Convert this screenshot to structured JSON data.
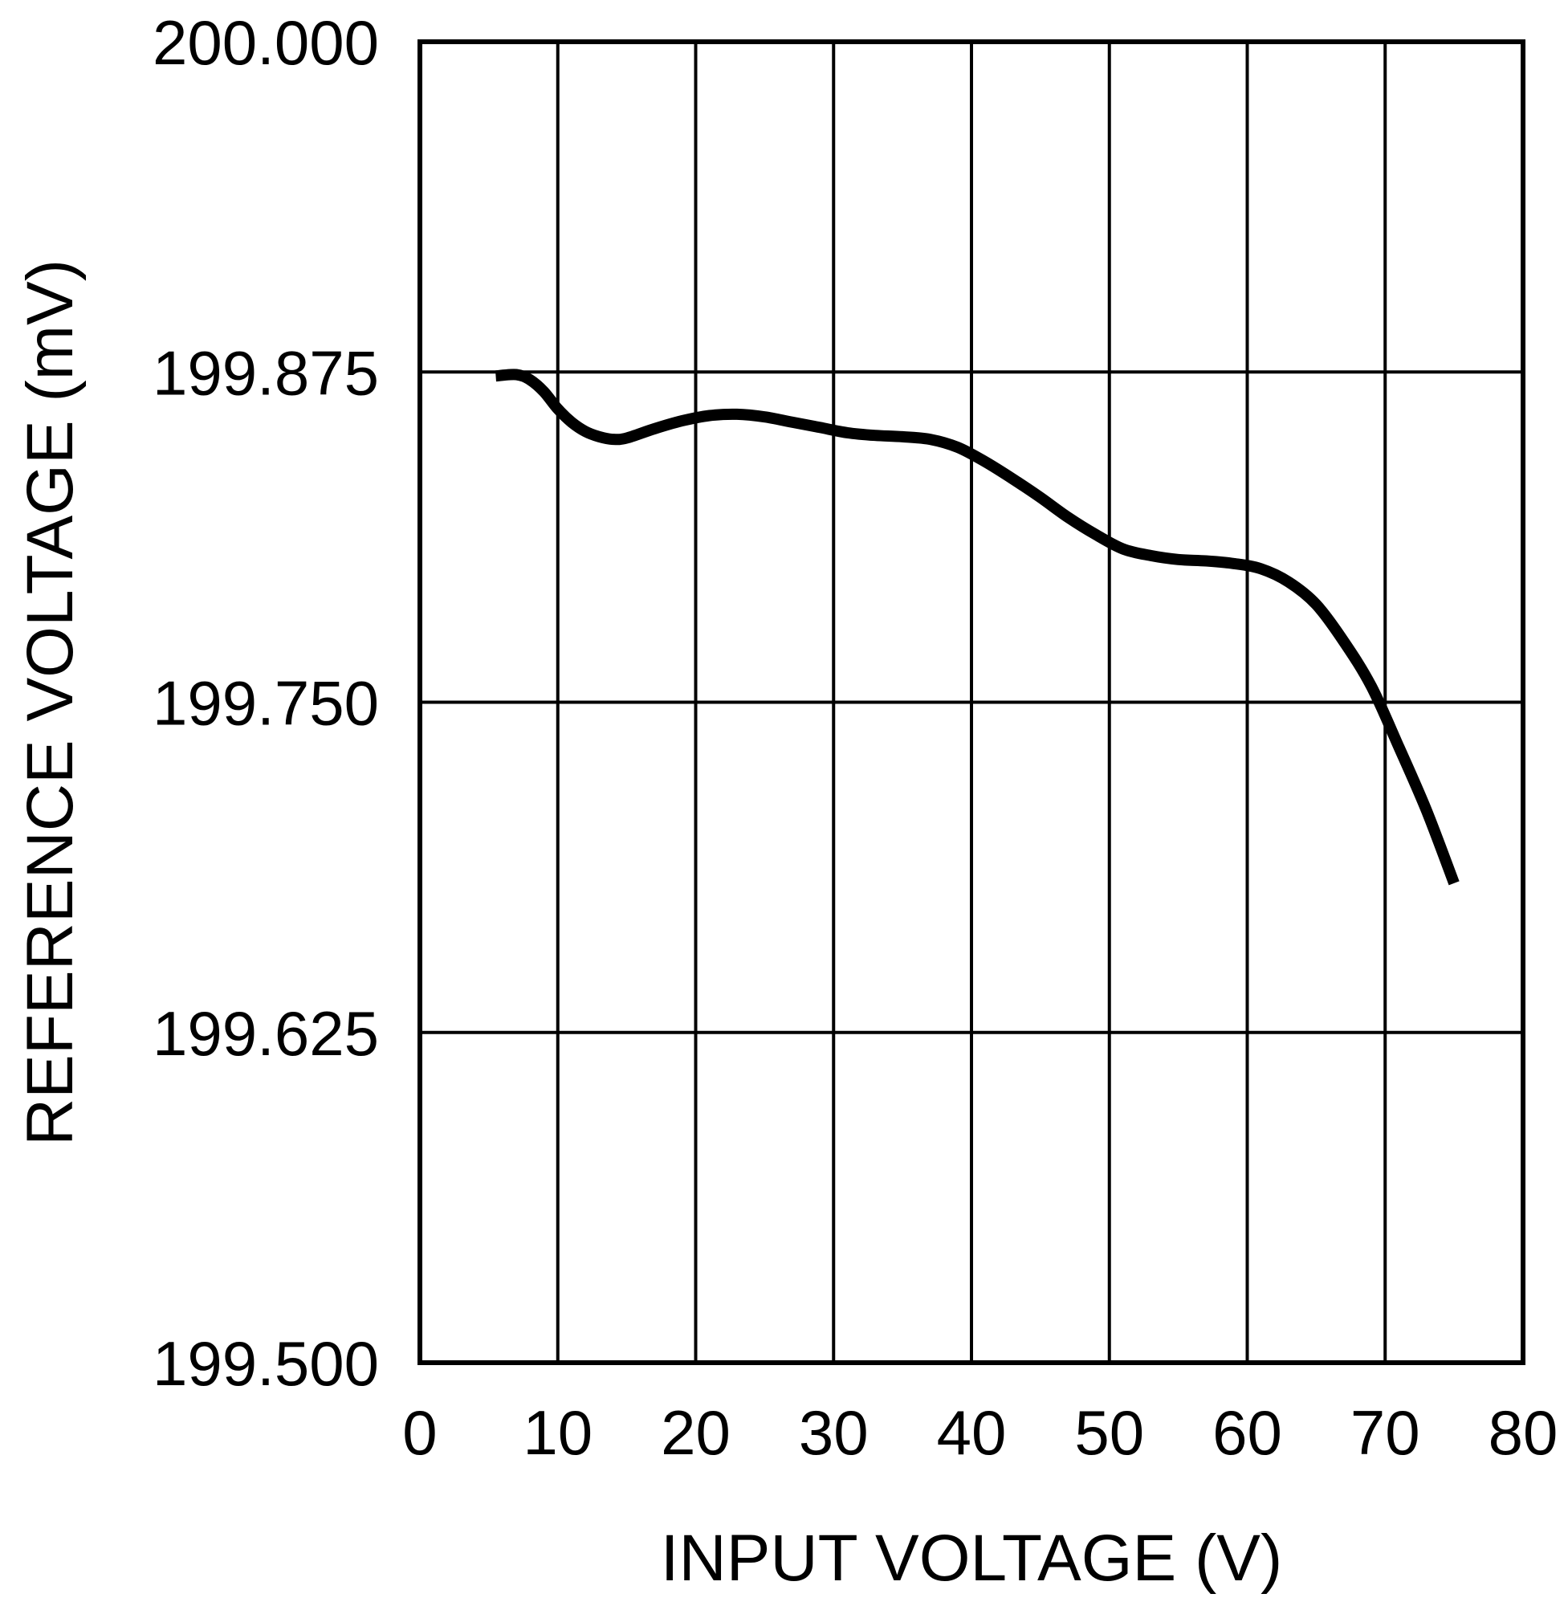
{
  "chart_data": {
    "type": "line",
    "xlabel": "INPUT VOLTAGE (V)",
    "ylabel": "REFERENCE VOLTAGE (mV)",
    "xlim": [
      0,
      80
    ],
    "ylim": [
      199.5,
      200.0
    ],
    "xticks": [
      "0",
      "10",
      "20",
      "30",
      "40",
      "50",
      "60",
      "70",
      "80"
    ],
    "yticks": [
      "199.500",
      "199.625",
      "199.750",
      "199.875",
      "200.000"
    ],
    "grid": true,
    "series": [
      {
        "x": [
          5.5,
          7,
          8,
          9,
          10,
          11,
          12,
          13,
          14,
          15,
          17,
          19,
          21,
          23,
          25,
          27,
          29,
          31,
          33,
          35,
          37,
          39,
          41,
          43,
          45,
          47,
          49,
          51,
          53,
          55,
          57,
          59,
          61,
          63,
          65,
          67,
          69,
          71,
          73,
          75
        ],
        "y": [
          199.8735,
          199.874,
          199.872,
          199.8675,
          199.861,
          199.856,
          199.8525,
          199.8505,
          199.8495,
          199.85,
          199.8535,
          199.8565,
          199.8585,
          199.859,
          199.858,
          199.856,
          199.854,
          199.852,
          199.851,
          199.8505,
          199.8495,
          199.8465,
          199.841,
          199.8345,
          199.8275,
          199.82,
          199.8135,
          199.808,
          199.8055,
          199.804,
          199.8035,
          199.8025,
          199.8005,
          199.7955,
          199.787,
          199.773,
          199.756,
          199.733,
          199.709,
          199.6815
        ]
      }
    ],
    "colors": {
      "line": "#000000",
      "grid": "#000000",
      "background": "#ffffff"
    }
  }
}
